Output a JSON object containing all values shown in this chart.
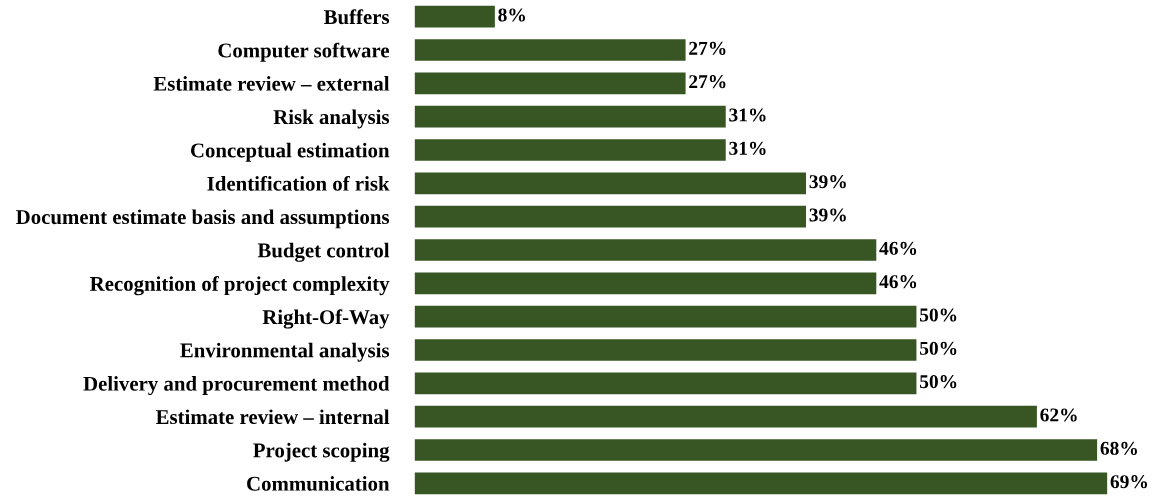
{
  "chart_data": {
    "type": "bar",
    "orientation": "horizontal",
    "categories": [
      "Buffers",
      "Computer software",
      "Estimate review – external",
      "Risk analysis",
      "Conceptual estimation",
      "Identification of risk",
      "Document estimate basis and assumptions",
      "Budget control",
      "Recognition of project complexity",
      "Right-Of-Way",
      "Environmental analysis",
      "Delivery and procurement method",
      "Estimate review – internal",
      "Project scoping",
      "Communication"
    ],
    "values": [
      8,
      27,
      27,
      31,
      31,
      39,
      39,
      46,
      46,
      50,
      50,
      50,
      62,
      68,
      69
    ],
    "value_labels": [
      "8%",
      "27%",
      "27%",
      "31%",
      "31%",
      "39%",
      "39%",
      "46%",
      "46%",
      "50%",
      "50%",
      "50%",
      "62%",
      "68%",
      "69%"
    ],
    "color": "#375623",
    "tick_labels": "y",
    "grid": false,
    "legend": false
  }
}
